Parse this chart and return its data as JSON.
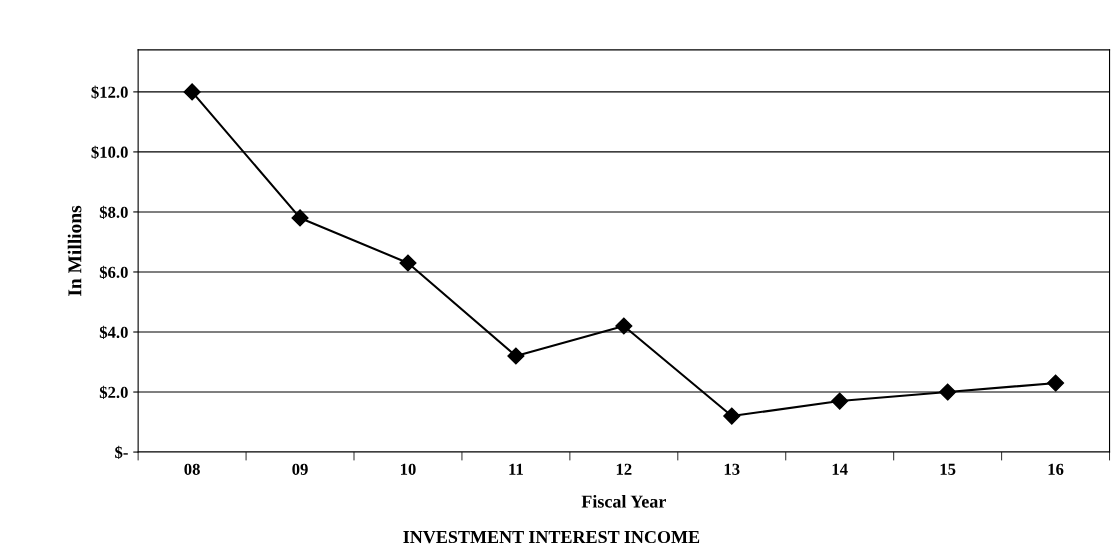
{
  "chart_data": {
    "type": "line",
    "title": "INVESTMENT INTEREST INCOME",
    "xlabel": "Fiscal Year",
    "ylabel": "In Millions",
    "categories": [
      "08",
      "09",
      "10",
      "11",
      "12",
      "13",
      "14",
      "15",
      "16"
    ],
    "series": [
      {
        "color": "#000000",
        "values": [
          12.0,
          7.8,
          6.3,
          3.2,
          4.2,
          1.2,
          1.7,
          2.0,
          2.3
        ]
      }
    ],
    "ylim": [
      0,
      13.4
    ],
    "yticks": [
      {
        "value": 0,
        "label": "$-"
      },
      {
        "value": 2,
        "label": "$2.0"
      },
      {
        "value": 4,
        "label": "$4.0"
      },
      {
        "value": 6,
        "label": "$6.0"
      },
      {
        "value": 8,
        "label": "$8.0"
      },
      {
        "value": 10,
        "label": "$10.0"
      },
      {
        "value": 12,
        "label": "$12.0"
      }
    ],
    "grid": "y",
    "marker": "diamond",
    "line_style": "solid"
  }
}
